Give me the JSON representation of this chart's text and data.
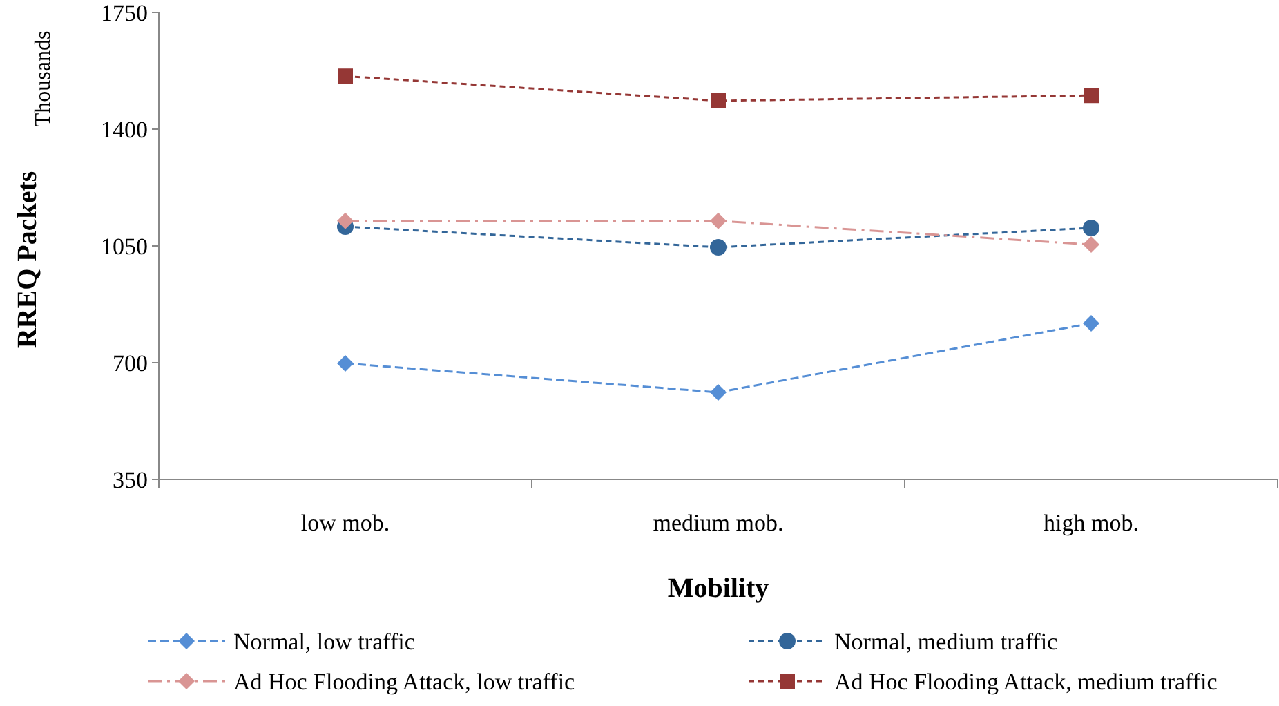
{
  "chart_data": {
    "type": "line",
    "xlabel": "Mobility",
    "ylabel": "RREQ Packets",
    "annotations": [
      "Thousands"
    ],
    "categories": [
      "low mob.",
      "medium mob.",
      "high mob."
    ],
    "ylim": [
      350,
      1750
    ],
    "yticks": [
      350,
      700,
      1050,
      1400,
      1750
    ],
    "grid": false,
    "legend": "bottom",
    "series": [
      {
        "name": "Normal, low traffic",
        "color": "#558ed5",
        "marker": "diamond",
        "line_style": "dashed",
        "values": [
          698,
          611,
          818
        ]
      },
      {
        "name": "Normal, medium traffic",
        "color": "#336699",
        "marker": "circle",
        "line_style": "dashed",
        "values": [
          1108,
          1046,
          1104
        ]
      },
      {
        "name": "Ad Hoc Flooding Attack, low traffic",
        "color": "#d99594",
        "marker": "diamond",
        "line_style": "dashed",
        "values": [
          1125,
          1125,
          1054
        ]
      },
      {
        "name": "Ad Hoc Flooding Attack, medium traffic",
        "color": "#953735",
        "marker": "square",
        "line_style": "dashed",
        "values": [
          1559,
          1485,
          1501
        ]
      }
    ]
  }
}
